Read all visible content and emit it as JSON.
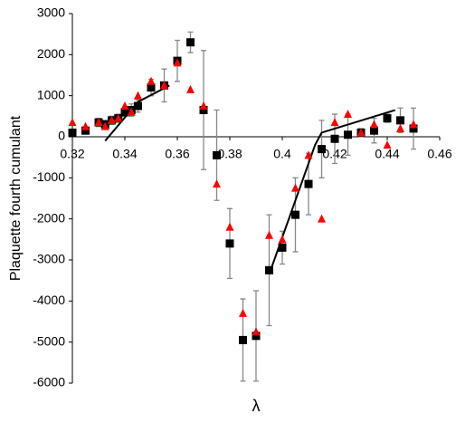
{
  "chart_data": {
    "type": "scatter",
    "xlabel": "λ",
    "ylabel": "Plaquette fourth cumulant",
    "xlim": [
      0.32,
      0.46
    ],
    "xticks": [
      0.32,
      0.34,
      0.36,
      0.38,
      0.4,
      0.42,
      0.44,
      0.46
    ],
    "ylim": [
      -6000,
      3000
    ],
    "yticks": [
      -6000,
      -5000,
      -4000,
      -3000,
      -2000,
      -1000,
      0,
      1000,
      2000,
      3000
    ],
    "grid": false,
    "series": [
      {
        "color": "#000000",
        "marker": "square",
        "x": [
          0.32,
          0.325,
          0.33,
          0.3325,
          0.335,
          0.3375,
          0.34,
          0.3425,
          0.345,
          0.35,
          0.355,
          0.36,
          0.365,
          0.37,
          0.375,
          0.38,
          0.385,
          0.39,
          0.395,
          0.4,
          0.405,
          0.41,
          0.415,
          0.42,
          0.425,
          0.43,
          0.435,
          0.44,
          0.445,
          0.45
        ],
        "values": [
          100,
          150,
          350,
          300,
          400,
          450,
          600,
          650,
          750,
          1200,
          1250,
          1850,
          2300,
          650,
          -450,
          -2600,
          -4950,
          -4850,
          -3250,
          -2700,
          -1900,
          -1150,
          -300,
          -50,
          50,
          100,
          150,
          450,
          400,
          200
        ],
        "error": [
          50,
          50,
          100,
          100,
          100,
          100,
          100,
          150,
          150,
          200,
          400,
          500,
          250,
          1450,
          1100,
          850,
          1000,
          1100,
          1350,
          400,
          900,
          750,
          700,
          600,
          500,
          100,
          300,
          100,
          300,
          500
        ]
      },
      {
        "color": "#ff0000",
        "marker": "triangle",
        "x": [
          0.32,
          0.325,
          0.33,
          0.3325,
          0.335,
          0.3375,
          0.34,
          0.3425,
          0.345,
          0.35,
          0.355,
          0.36,
          0.365,
          0.37,
          0.375,
          0.38,
          0.385,
          0.39,
          0.395,
          0.4,
          0.405,
          0.41,
          0.415,
          0.42,
          0.425,
          0.43,
          0.435,
          0.44,
          0.445,
          0.45
        ],
        "values": [
          350,
          250,
          350,
          250,
          400,
          450,
          750,
          600,
          1000,
          1350,
          1250,
          1800,
          1150,
          750,
          -1150,
          -2200,
          -4300,
          -4750,
          -2400,
          -2500,
          -1250,
          -450,
          -2000,
          350,
          550,
          100,
          300,
          -200,
          200,
          300
        ]
      },
      {
        "color": "#000000",
        "marker": "line",
        "x": [
          0.3325,
          0.345,
          0.357,
          null,
          0.395,
          0.4125,
          0.415,
          0.443
        ],
        "values": [
          -100,
          850,
          1250,
          null,
          -3350,
          -200,
          100,
          650
        ]
      }
    ]
  }
}
